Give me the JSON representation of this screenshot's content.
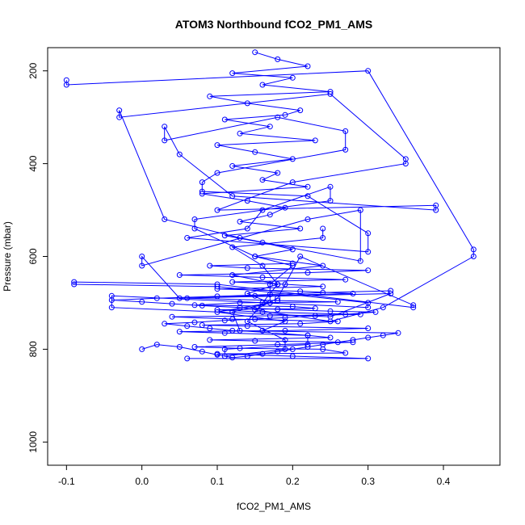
{
  "chart_data": {
    "type": "scatter",
    "title": "ATOM3 Northbound fCO2_PM1_AMS",
    "xlabel": "fCO2_PM1_AMS",
    "ylabel": "Pressure (mbar)",
    "xlim": [
      -0.125,
      0.475
    ],
    "ylim": [
      1050,
      150
    ],
    "y_reversed": true,
    "x_ticks": [
      -0.1,
      0.0,
      0.1,
      0.2,
      0.3,
      0.4
    ],
    "x_tick_labels": [
      "-0.1",
      "0.0",
      "0.1",
      "0.2",
      "0.3",
      "0.4"
    ],
    "y_ticks": [
      200,
      400,
      600,
      800,
      1000
    ],
    "y_tick_labels": [
      "200",
      "400",
      "600",
      "800",
      "1000"
    ],
    "grid": false,
    "legend": "none",
    "marker": "open-circle",
    "connected": true,
    "color": "#0000ff",
    "series": [
      {
        "x": [
          -0.1,
          -0.1,
          0.3,
          0.44,
          0.44,
          0.32,
          0.25,
          0.15,
          0.18,
          0.21,
          0.36,
          0.36,
          0.1,
          -0.09,
          -0.09,
          0.1,
          0.3,
          0.3,
          -0.04,
          -0.04,
          0.25,
          0.33,
          0.05,
          0.0,
          0.0,
          0.22,
          0.29,
          0.29,
          0.13,
          0.03,
          -0.03,
          -0.03,
          0.25,
          0.35,
          0.35,
          0.2,
          0.1,
          0.39,
          0.39,
          0.12,
          0.05,
          0.03,
          0.03,
          0.18,
          0.27,
          0.27,
          0.1,
          0.08,
          0.08,
          0.22,
          0.3,
          0.3,
          0.06,
          0.14,
          0.16,
          0.25,
          0.25,
          0.07,
          0.07,
          0.15,
          0.2,
          0.17,
          0.17,
          0.12,
          0.13,
          0.22,
          0.22,
          0.11,
          0.11,
          0.19,
          0.19,
          0.14,
          0.16,
          0.18,
          0.16,
          0.12,
          0.24,
          0.24
        ],
        "y": [
          220,
          230,
          200,
          585,
          600,
          710,
          740,
          715,
          690,
          600,
          705,
          710,
          660,
          655,
          660,
          665,
          700,
          710,
          685,
          710,
          730,
          680,
          690,
          600,
          620,
          520,
          500,
          610,
          560,
          520,
          285,
          300,
          250,
          390,
          400,
          440,
          500,
          490,
          500,
          470,
          380,
          320,
          350,
          300,
          330,
          370,
          420,
          440,
          460,
          470,
          550,
          590,
          560,
          540,
          500,
          450,
          480,
          520,
          540,
          600,
          620,
          660,
          700,
          720,
          760,
          770,
          790,
          800,
          815,
          800,
          780,
          740,
          700,
          660,
          620,
          580,
          560,
          540
        ]
      },
      {
        "x": [
          0.06,
          0.3,
          0.2,
          0.1,
          0.27,
          0.24,
          0.13,
          0.07,
          0.18,
          0.28,
          0.15,
          0.09,
          0.25,
          0.22,
          0.11,
          0.05,
          0.19,
          0.3,
          0.14,
          0.08,
          0.21,
          0.26,
          0.12,
          0.04,
          0.17,
          0.29,
          0.16,
          0.1,
          0.23,
          0.2,
          0.07,
          0.13,
          0.26,
          0.18,
          0.06,
          0.15,
          0.28,
          0.21,
          0.1,
          0.24,
          0.19,
          0.12,
          0.27,
          0.16,
          0.05,
          0.22,
          0.3,
          0.14,
          0.09,
          0.2
        ],
        "y": [
          820,
          820,
          815,
          810,
          808,
          800,
          798,
          795,
          790,
          785,
          782,
          780,
          775,
          770,
          765,
          762,
          760,
          755,
          750,
          748,
          745,
          740,
          735,
          730,
          728,
          725,
          720,
          715,
          712,
          708,
          705,
          700,
          698,
          695,
          690,
          685,
          680,
          675,
          670,
          665,
          660,
          655,
          650,
          645,
          640,
          635,
          630,
          625,
          620,
          615
        ]
      },
      {
        "x": [
          0.15,
          0.18,
          0.22,
          0.12,
          0.2,
          0.16,
          0.25,
          0.09,
          0.14,
          0.21,
          0.19,
          0.11,
          0.17,
          0.13,
          0.23,
          0.1,
          0.15,
          0.2,
          0.12,
          0.18,
          0.16,
          0.22,
          0.08,
          0.14,
          0.19,
          0.17,
          0.13,
          0.21,
          0.11,
          0.16,
          0.2,
          0.15,
          0.24,
          0.12,
          0.18,
          0.14,
          0.17,
          0.1,
          0.19,
          0.16
        ],
        "y": [
          160,
          175,
          190,
          205,
          215,
          230,
          245,
          255,
          270,
          285,
          295,
          305,
          320,
          335,
          350,
          360,
          375,
          390,
          405,
          420,
          435,
          450,
          465,
          480,
          495,
          510,
          525,
          540,
          555,
          570,
          585,
          600,
          620,
          640,
          660,
          680,
          700,
          720,
          740,
          760
        ]
      },
      {
        "x": [
          0.0,
          0.02,
          0.05,
          0.08,
          0.1,
          0.12,
          0.14,
          0.16,
          0.18,
          0.2,
          0.22,
          0.24,
          0.26,
          0.28,
          0.3,
          0.32,
          0.34,
          0.12,
          0.09,
          0.06,
          0.03,
          0.07,
          0.11,
          0.15,
          0.19,
          0.23,
          0.27,
          0.31,
          0.25,
          0.18,
          0.13,
          0.08,
          0.04,
          0.0,
          -0.04,
          0.02,
          0.1,
          0.17,
          0.24,
          0.33
        ],
        "y": [
          800,
          790,
          795,
          805,
          812,
          818,
          815,
          810,
          805,
          800,
          795,
          790,
          785,
          780,
          775,
          770,
          765,
          760,
          755,
          750,
          745,
          742,
          738,
          735,
          732,
          728,
          725,
          720,
          718,
          714,
          710,
          706,
          702,
          698,
          694,
          690,
          686,
          682,
          678,
          674
        ]
      }
    ]
  }
}
